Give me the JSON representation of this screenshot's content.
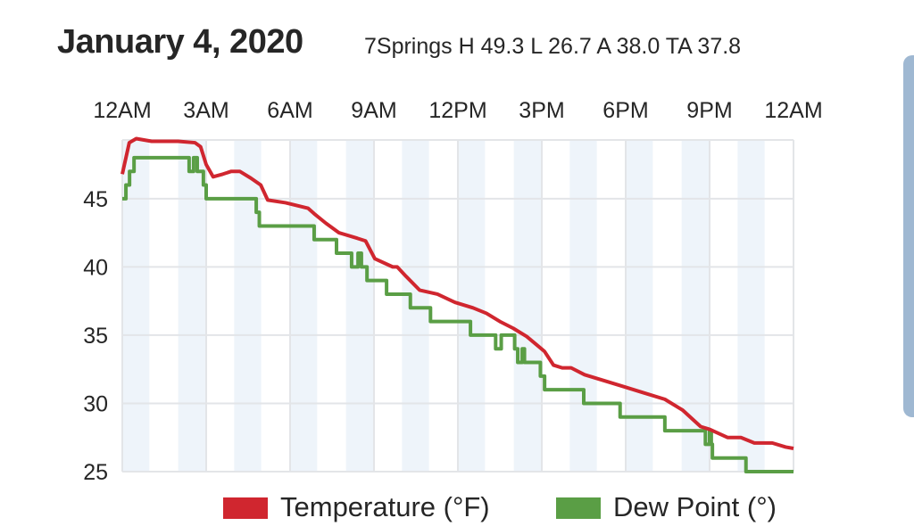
{
  "header": {
    "title": "January 4, 2020",
    "subtitle": "7Springs H 49.3 L 26.7 A 38.0 TA 37.8"
  },
  "chart_data": {
    "type": "line",
    "title": "January 4, 2020",
    "subtitle": "7Springs H 49.3 L 26.7 A 38.0 TA 37.8",
    "xlabel": "",
    "ylabel": "",
    "x_unit": "hour of day",
    "xlim": [
      0,
      24
    ],
    "ylim": [
      25,
      49.3
    ],
    "x_ticks": [
      {
        "hour": 0,
        "label": "12AM"
      },
      {
        "hour": 3,
        "label": "3AM"
      },
      {
        "hour": 6,
        "label": "6AM"
      },
      {
        "hour": 9,
        "label": "9AM"
      },
      {
        "hour": 12,
        "label": "12PM"
      },
      {
        "hour": 15,
        "label": "3PM"
      },
      {
        "hour": 18,
        "label": "6PM"
      },
      {
        "hour": 21,
        "label": "9PM"
      },
      {
        "hour": 24,
        "label": "12AM"
      }
    ],
    "y_ticks": [
      25,
      30,
      35,
      40,
      45
    ],
    "x_axis_position": "top",
    "grid": true,
    "shaded_hours": "alternate 1-hour bands starting at 12AM",
    "legend_position": "bottom",
    "series": [
      {
        "name": "Temperature (°F)",
        "color": "#d0262f",
        "step": false,
        "points": [
          [
            0,
            46.8
          ],
          [
            0.25,
            49.1
          ],
          [
            0.5,
            49.4
          ],
          [
            1.05,
            49.2
          ],
          [
            2,
            49.2
          ],
          [
            2.6,
            49.1
          ],
          [
            2.8,
            48.8
          ],
          [
            3,
            47.5
          ],
          [
            3.25,
            46.6
          ],
          [
            3.6,
            46.8
          ],
          [
            3.9,
            47.0
          ],
          [
            4.2,
            47.0
          ],
          [
            4.6,
            46.5
          ],
          [
            4.95,
            46.0
          ],
          [
            5.2,
            44.9
          ],
          [
            5.84,
            44.7
          ],
          [
            6.64,
            44.3
          ],
          [
            6.86,
            43.9
          ],
          [
            7.28,
            43.2
          ],
          [
            7.75,
            42.5
          ],
          [
            8.4,
            42.1
          ],
          [
            8.7,
            41.9
          ],
          [
            9.03,
            40.6
          ],
          [
            9.67,
            40.0
          ],
          [
            9.83,
            40.0
          ],
          [
            10.15,
            39.3
          ],
          [
            10.63,
            38.3
          ],
          [
            11.27,
            38.0
          ],
          [
            11.9,
            37.4
          ],
          [
            12.54,
            37.0
          ],
          [
            13.02,
            36.6
          ],
          [
            13.5,
            36.0
          ],
          [
            13.98,
            35.5
          ],
          [
            14.46,
            34.9
          ],
          [
            14.87,
            34.2
          ],
          [
            15.1,
            33.8
          ],
          [
            15.42,
            32.8
          ],
          [
            15.73,
            32.6
          ],
          [
            16.05,
            32.6
          ],
          [
            16.53,
            32.1
          ],
          [
            17.33,
            31.6
          ],
          [
            17.97,
            31.2
          ],
          [
            18.6,
            30.8
          ],
          [
            19.4,
            30.3
          ],
          [
            20.04,
            29.5
          ],
          [
            20.68,
            28.3
          ],
          [
            21.0,
            28.1
          ],
          [
            21.64,
            27.5
          ],
          [
            22.12,
            27.5
          ],
          [
            22.6,
            27.1
          ],
          [
            23.24,
            27.1
          ],
          [
            23.72,
            26.8
          ],
          [
            24,
            26.7
          ]
        ]
      },
      {
        "name": "Dew Point (°)",
        "color": "#5a9e45",
        "step": true,
        "points": [
          [
            0,
            45
          ],
          [
            0.13,
            46
          ],
          [
            0.26,
            47
          ],
          [
            0.42,
            48
          ],
          [
            2.39,
            47
          ],
          [
            2.55,
            48
          ],
          [
            2.68,
            47
          ],
          [
            2.9,
            46
          ],
          [
            3.0,
            45
          ],
          [
            4.79,
            44
          ],
          [
            4.9,
            43
          ],
          [
            6.86,
            42
          ],
          [
            7.0,
            42
          ],
          [
            7.66,
            41
          ],
          [
            8.2,
            40
          ],
          [
            8.43,
            41
          ],
          [
            8.55,
            40
          ],
          [
            8.75,
            39
          ],
          [
            9.0,
            39
          ],
          [
            9.45,
            38
          ],
          [
            10.3,
            37
          ],
          [
            11.02,
            36
          ],
          [
            12.45,
            35
          ],
          [
            13.35,
            34
          ],
          [
            13.55,
            35
          ],
          [
            14.03,
            34
          ],
          [
            14.14,
            33
          ],
          [
            14.3,
            34
          ],
          [
            14.38,
            33
          ],
          [
            14.95,
            32
          ],
          [
            15.1,
            31
          ],
          [
            16.5,
            30
          ],
          [
            17.8,
            29
          ],
          [
            19.4,
            28
          ],
          [
            20.85,
            27
          ],
          [
            21.0,
            28
          ],
          [
            21.06,
            27
          ],
          [
            21.1,
            26
          ],
          [
            22.3,
            25
          ],
          [
            24,
            25
          ]
        ]
      }
    ]
  }
}
